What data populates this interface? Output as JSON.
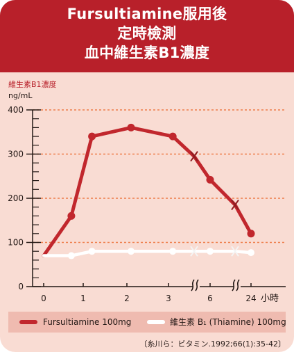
{
  "title_lines": [
    "Fursultiamine服用後",
    "定時檢測",
    "血中維生素B1濃度"
  ],
  "chart_data": {
    "type": "line",
    "title": "Fursultiamine服用後 定時檢測 血中維生素B1濃度",
    "ylabel": "維生素B1濃度",
    "yunit": "ng/mL",
    "xlabel": "小時",
    "ylim": [
      0,
      400
    ],
    "yticks": [
      0,
      100,
      200,
      300,
      400
    ],
    "grid": "dashed horizontal at 100, 200, 300, 400",
    "x_ticks": [
      "0",
      "1",
      "2",
      "3",
      "6",
      "24"
    ],
    "x_axis_break": "broken (≈) between 3 and 6, and between 6 and 24",
    "x": [
      0,
      0.7,
      1.2,
      2.1,
      3.1,
      3.6,
      6,
      6.5,
      24
    ],
    "series": [
      {
        "name": "Fursultiamine 100mg",
        "color": "#c1272d",
        "values": [
          70,
          160,
          340,
          360,
          340,
          295,
          242,
          185,
          120
        ]
      },
      {
        "name": "維生素 B₁ (Thiamine) 100mg",
        "color": "#ffffff",
        "values": [
          70,
          70,
          80,
          80,
          80,
          80,
          80,
          80,
          77
        ]
      }
    ],
    "legend_position": "bottom"
  },
  "legend": [
    {
      "label": "Fursultiamine 100mg",
      "color": "#c1272d"
    },
    {
      "label": "維生素 B₁ (Thiamine) 100mg",
      "color": "#ffffff"
    }
  ],
  "source": "〔糸川ら：ビタミン.1992;66(1):35-42〕",
  "colors": {
    "header": "#b8202a",
    "background": "#f9dcd3",
    "grid": "#ee7d4a",
    "legend_band": "#efbbb0"
  }
}
